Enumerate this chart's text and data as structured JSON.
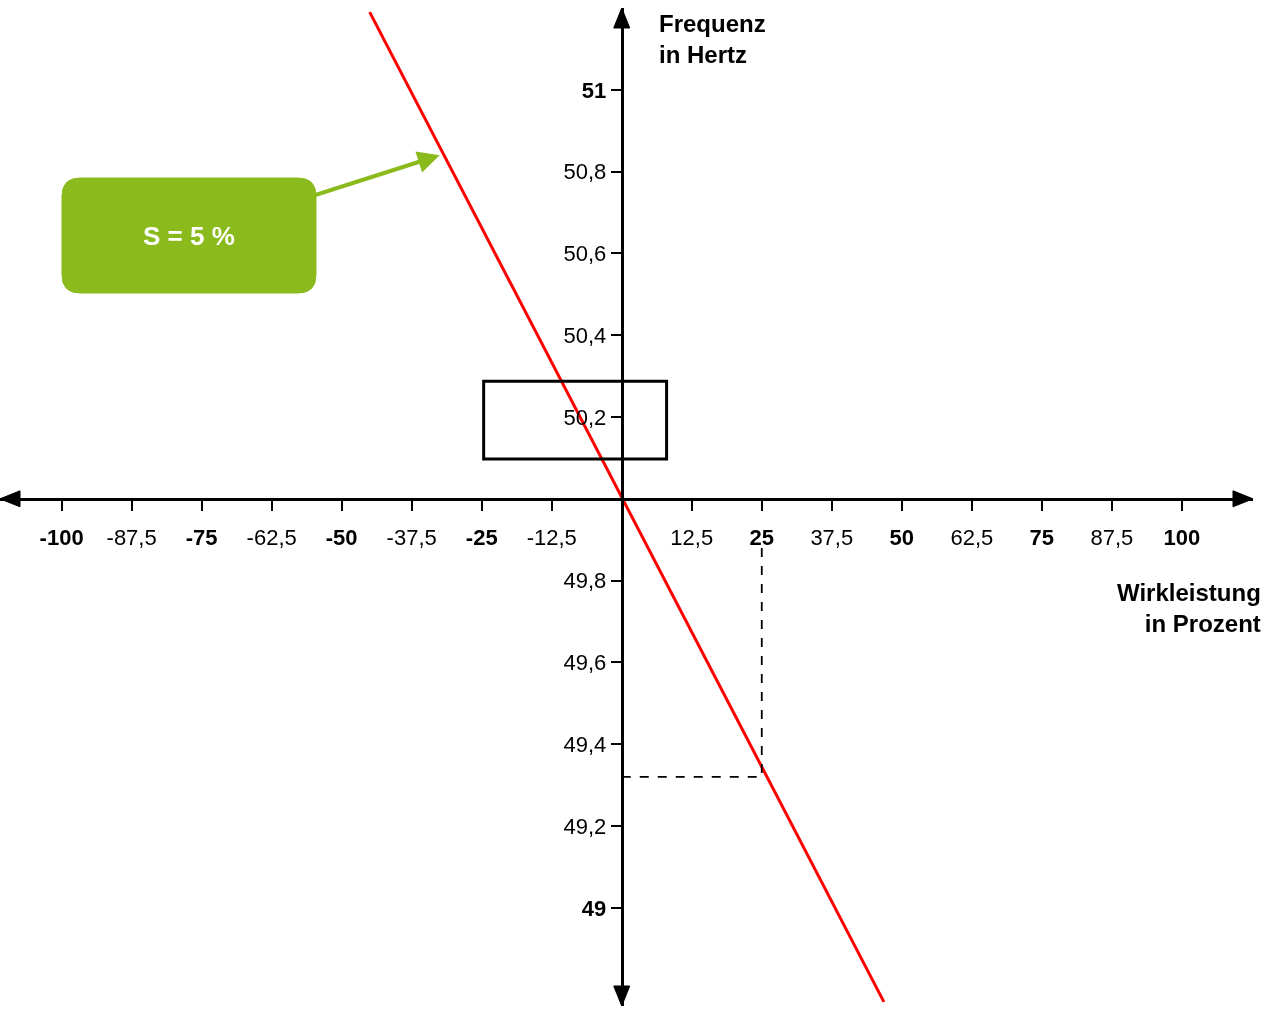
{
  "chart_data": {
    "type": "line",
    "xlabel": "Wirkleistung\nin Prozent",
    "ylabel": "Frequenz\nin Hertz",
    "series": [
      {
        "color": "#ff0000",
        "x": [
          -45,
          46.8
        ],
        "values": [
          51.19,
          48.77
        ]
      },
      {
        "color": "#000000",
        "x": [
          0,
          25,
          25
        ],
        "values": [
          49.32,
          49.32,
          49.88
        ],
        "line_style": "dashed"
      }
    ],
    "xlim": [
      -111,
      112.7
    ],
    "ylim": [
      48.76,
      51.2
    ],
    "xticks": [
      -100,
      {
        "value": -87.5,
        "label": "-87,5"
      },
      -75,
      {
        "value": -62.5,
        "label": "-62,5"
      },
      -50,
      {
        "value": -37.5,
        "label": "-37,5"
      },
      -25,
      {
        "value": -12.5,
        "label": "-12,5"
      },
      {
        "value": 0,
        "label": null
      },
      {
        "value": 12.5,
        "label": "12,5"
      },
      25,
      {
        "value": 37.5,
        "label": "37,5"
      },
      50,
      {
        "value": 62.5,
        "label": "62,5"
      },
      75,
      {
        "value": 87.5,
        "label": "87,5"
      },
      100
    ],
    "yticks": [
      49,
      {
        "value": 49.2,
        "label": "49,2"
      },
      {
        "value": 49.4,
        "label": "49,4"
      },
      {
        "value": 49.6,
        "label": "49,6"
      },
      {
        "value": 49.8,
        "label": "49,8"
      },
      {
        "value": 50,
        "label": null
      },
      {
        "value": 50.2,
        "label": "50,2"
      },
      {
        "value": 50.4,
        "label": "50,4"
      },
      {
        "value": 50.6,
        "label": "50,6"
      },
      {
        "value": 50.8,
        "label": "50,8"
      },
      51
    ],
    "annotations": [
      {
        "text": "S = 5 %",
        "x": -32.5,
        "y": 50.84
      }
    ]
  }
}
